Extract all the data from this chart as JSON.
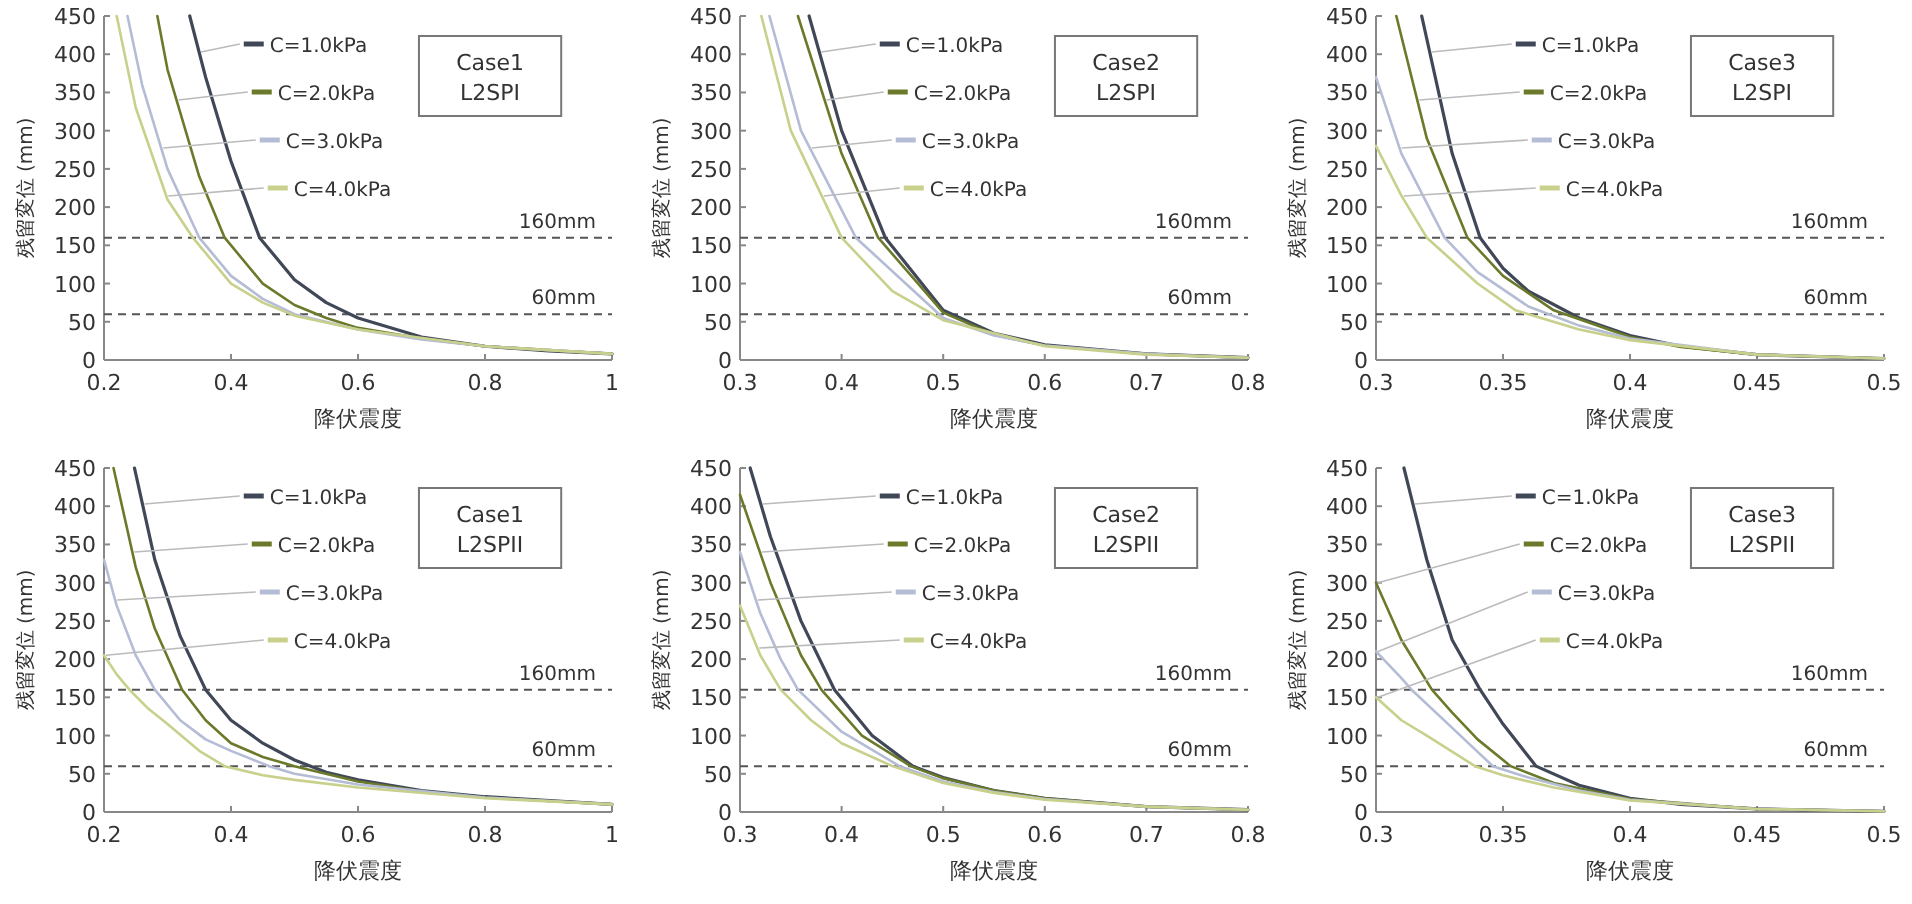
{
  "chart_data": [
    {
      "type": "line",
      "xlabel": "降伏震度",
      "ylabel": "残留変位 (mm)",
      "xlim": [
        0.2,
        1
      ],
      "xticks": [
        0.2,
        0.4,
        0.6,
        0.8,
        1
      ],
      "ylim": [
        0,
        450
      ],
      "yticks": [
        0,
        50,
        100,
        150,
        200,
        250,
        300,
        350,
        400,
        450
      ],
      "grid": false,
      "legend": "top",
      "marker": "none",
      "line_style": "solid",
      "annotations": [
        "Case1",
        "L2SPI"
      ],
      "ref_lines": [
        {
          "axis": "y",
          "value": 160,
          "label": "160mm",
          "color": "#555555",
          "line_style": "dashed"
        },
        {
          "axis": "y",
          "value": 60,
          "label": "60mm",
          "color": "#555555",
          "line_style": "dashed"
        }
      ],
      "series": [
        {
          "name": "C=1.0kPa",
          "color": "#404858",
          "x": [
            0.335,
            0.36,
            0.4,
            0.445,
            0.5,
            0.55,
            0.6,
            0.7,
            0.8,
            0.9,
            1.0
          ],
          "values": [
            450,
            370,
            260,
            160,
            105,
            75,
            55,
            30,
            18,
            12,
            8
          ]
        },
        {
          "name": "C=2.0kPa",
          "color": "#6b7a2a",
          "x": [
            0.284,
            0.3,
            0.35,
            0.39,
            0.45,
            0.5,
            0.55,
            0.6,
            0.7,
            0.8,
            1.0
          ],
          "values": [
            450,
            380,
            240,
            160,
            100,
            72,
            55,
            42,
            28,
            18,
            8
          ]
        },
        {
          "name": "C=3.0kPa",
          "color": "#b4bcd6",
          "x": [
            0.237,
            0.26,
            0.3,
            0.35,
            0.4,
            0.45,
            0.5,
            0.6,
            0.7,
            0.8,
            1.0
          ],
          "values": [
            450,
            360,
            250,
            160,
            110,
            80,
            60,
            40,
            27,
            18,
            8
          ]
        },
        {
          "name": "C=4.0kPa",
          "color": "#c8d08c",
          "x": [
            0.22,
            0.25,
            0.3,
            0.34,
            0.4,
            0.45,
            0.5,
            0.6,
            0.8,
            1.0
          ],
          "values": [
            450,
            330,
            210,
            160,
            100,
            75,
            58,
            40,
            18,
            8
          ]
        }
      ]
    },
    {
      "type": "line",
      "xlabel": "降伏震度",
      "ylabel": "残留変位 (mm)",
      "xlim": [
        0.3,
        0.8
      ],
      "xticks": [
        0.3,
        0.4,
        0.5,
        0.6,
        0.7,
        0.8
      ],
      "ylim": [
        0,
        450
      ],
      "yticks": [
        0,
        50,
        100,
        150,
        200,
        250,
        300,
        350,
        400,
        450
      ],
      "grid": false,
      "legend": "top",
      "marker": "none",
      "line_style": "solid",
      "annotations": [
        "Case2",
        "L2SPI"
      ],
      "ref_lines": [
        {
          "axis": "y",
          "value": 160,
          "label": "160mm",
          "color": "#555555",
          "line_style": "dashed"
        },
        {
          "axis": "y",
          "value": 60,
          "label": "60mm",
          "color": "#555555",
          "line_style": "dashed"
        }
      ],
      "series": [
        {
          "name": "C=1.0kPa",
          "color": "#404858",
          "x": [
            0.368,
            0.4,
            0.443,
            0.5,
            0.55,
            0.6,
            0.7,
            0.8
          ],
          "values": [
            450,
            300,
            160,
            65,
            35,
            20,
            8,
            3
          ]
        },
        {
          "name": "C=2.0kPa",
          "color": "#6b7a2a",
          "x": [
            0.357,
            0.4,
            0.436,
            0.5,
            0.55,
            0.6,
            0.7,
            0.8
          ],
          "values": [
            450,
            270,
            160,
            62,
            33,
            19,
            8,
            3
          ]
        },
        {
          "name": "C=3.0kPa",
          "color": "#b4bcd6",
          "x": [
            0.329,
            0.36,
            0.414,
            0.5,
            0.55,
            0.6,
            0.7,
            0.8
          ],
          "values": [
            450,
            300,
            160,
            55,
            32,
            19,
            8,
            3
          ]
        },
        {
          "name": "C=4.0kPa",
          "color": "#c8d08c",
          "x": [
            0.321,
            0.35,
            0.4,
            0.45,
            0.5,
            0.6,
            0.7,
            0.8
          ],
          "values": [
            450,
            300,
            160,
            90,
            52,
            18,
            7,
            3
          ]
        }
      ]
    },
    {
      "type": "line",
      "xlabel": "降伏震度",
      "ylabel": "残留変位 (mm)",
      "xlim": [
        0.3,
        0.5
      ],
      "xticks": [
        0.3,
        0.35,
        0.4,
        0.45,
        0.5
      ],
      "ylim": [
        0,
        450
      ],
      "yticks": [
        0,
        50,
        100,
        150,
        200,
        250,
        300,
        350,
        400,
        450
      ],
      "grid": false,
      "legend": "top",
      "marker": "none",
      "line_style": "solid",
      "annotations": [
        "Case3",
        "L2SPI"
      ],
      "ref_lines": [
        {
          "axis": "y",
          "value": 160,
          "label": "160mm",
          "color": "#555555",
          "line_style": "dashed"
        },
        {
          "axis": "y",
          "value": 60,
          "label": "60mm",
          "color": "#555555",
          "line_style": "dashed"
        }
      ],
      "series": [
        {
          "name": "C=1.0kPa",
          "color": "#404858",
          "x": [
            0.318,
            0.33,
            0.341,
            0.35,
            0.36,
            0.38,
            0.4,
            0.42,
            0.45,
            0.5
          ],
          "values": [
            450,
            270,
            160,
            120,
            90,
            55,
            32,
            18,
            7,
            2
          ]
        },
        {
          "name": "C=2.0kPa",
          "color": "#6b7a2a",
          "x": [
            0.308,
            0.32,
            0.336,
            0.35,
            0.37,
            0.4,
            0.42,
            0.45,
            0.5
          ],
          "values": [
            450,
            290,
            160,
            110,
            65,
            30,
            17,
            7,
            2
          ]
        },
        {
          "name": "C=3.0kPa",
          "color": "#b4bcd6",
          "x": [
            0.3,
            0.31,
            0.327,
            0.34,
            0.36,
            0.38,
            0.4,
            0.45,
            0.5
          ],
          "values": [
            370,
            270,
            160,
            115,
            70,
            45,
            28,
            7,
            2
          ]
        },
        {
          "name": "C=4.0kPa",
          "color": "#c8d08c",
          "x": [
            0.3,
            0.31,
            0.32,
            0.34,
            0.355,
            0.38,
            0.4,
            0.45,
            0.5
          ],
          "values": [
            280,
            215,
            160,
            100,
            65,
            40,
            26,
            7,
            2
          ]
        }
      ]
    },
    {
      "type": "line",
      "xlabel": "降伏震度",
      "ylabel": "残留変位 (mm)",
      "xlim": [
        0.2,
        1
      ],
      "xticks": [
        0.2,
        0.4,
        0.6,
        0.8,
        1
      ],
      "ylim": [
        0,
        450
      ],
      "yticks": [
        0,
        50,
        100,
        150,
        200,
        250,
        300,
        350,
        400,
        450
      ],
      "grid": false,
      "legend": "top",
      "marker": "none",
      "line_style": "solid",
      "annotations": [
        "Case1",
        "L2SPII"
      ],
      "ref_lines": [
        {
          "axis": "y",
          "value": 160,
          "label": "160mm",
          "color": "#555555",
          "line_style": "dashed"
        },
        {
          "axis": "y",
          "value": 60,
          "label": "60mm",
          "color": "#555555",
          "line_style": "dashed"
        }
      ],
      "series": [
        {
          "name": "C=1.0kPa",
          "color": "#404858",
          "x": [
            0.248,
            0.28,
            0.32,
            0.36,
            0.4,
            0.45,
            0.5,
            0.55,
            0.6,
            0.7,
            0.8,
            1.0
          ],
          "values": [
            450,
            330,
            230,
            160,
            120,
            90,
            68,
            52,
            42,
            28,
            20,
            10
          ]
        },
        {
          "name": "C=2.0kPa",
          "color": "#6b7a2a",
          "x": [
            0.215,
            0.25,
            0.28,
            0.323,
            0.36,
            0.4,
            0.45,
            0.5,
            0.6,
            0.7,
            0.8,
            1.0
          ],
          "values": [
            450,
            320,
            240,
            160,
            120,
            90,
            72,
            60,
            40,
            27,
            19,
            10
          ]
        },
        {
          "name": "C=3.0kPa",
          "color": "#b4bcd6",
          "x": [
            0.2,
            0.22,
            0.25,
            0.28,
            0.32,
            0.36,
            0.4,
            0.46,
            0.5,
            0.6,
            0.8,
            1.0
          ],
          "values": [
            330,
            270,
            205,
            160,
            120,
            95,
            80,
            60,
            50,
            36,
            19,
            10
          ]
        },
        {
          "name": "C=4.0kPa",
          "color": "#c8d08c",
          "x": [
            0.2,
            0.22,
            0.24,
            0.27,
            0.3,
            0.35,
            0.39,
            0.45,
            0.5,
            0.6,
            0.8,
            1.0
          ],
          "values": [
            205,
            180,
            160,
            135,
            115,
            80,
            60,
            48,
            42,
            32,
            18,
            10
          ]
        }
      ]
    },
    {
      "type": "line",
      "xlabel": "降伏震度",
      "ylabel": "残留変位 (mm)",
      "xlim": [
        0.3,
        0.8
      ],
      "xticks": [
        0.3,
        0.4,
        0.5,
        0.6,
        0.7,
        0.8
      ],
      "ylim": [
        0,
        450
      ],
      "yticks": [
        0,
        50,
        100,
        150,
        200,
        250,
        300,
        350,
        400,
        450
      ],
      "grid": false,
      "legend": "top",
      "marker": "none",
      "line_style": "solid",
      "annotations": [
        "Case2",
        "L2SPII"
      ],
      "ref_lines": [
        {
          "axis": "y",
          "value": 160,
          "label": "160mm",
          "color": "#555555",
          "line_style": "dashed"
        },
        {
          "axis": "y",
          "value": 60,
          "label": "60mm",
          "color": "#555555",
          "line_style": "dashed"
        }
      ],
      "series": [
        {
          "name": "C=1.0kPa",
          "color": "#404858",
          "x": [
            0.31,
            0.33,
            0.36,
            0.393,
            0.43,
            0.47,
            0.5,
            0.55,
            0.6,
            0.7,
            0.8
          ],
          "values": [
            450,
            360,
            250,
            160,
            100,
            60,
            45,
            28,
            18,
            7,
            3
          ]
        },
        {
          "name": "C=2.0kPa",
          "color": "#6b7a2a",
          "x": [
            0.3,
            0.33,
            0.36,
            0.38,
            0.42,
            0.468,
            0.5,
            0.55,
            0.6,
            0.7,
            0.8
          ],
          "values": [
            415,
            300,
            205,
            160,
            100,
            60,
            44,
            28,
            18,
            7,
            3
          ]
        },
        {
          "name": "C=3.0kPa",
          "color": "#b4bcd6",
          "x": [
            0.3,
            0.32,
            0.34,
            0.357,
            0.4,
            0.457,
            0.5,
            0.55,
            0.6,
            0.7,
            0.8
          ],
          "values": [
            340,
            260,
            200,
            160,
            105,
            60,
            40,
            26,
            17,
            7,
            3
          ]
        },
        {
          "name": "C=4.0kPa",
          "color": "#c8d08c",
          "x": [
            0.3,
            0.32,
            0.34,
            0.37,
            0.4,
            0.45,
            0.5,
            0.55,
            0.6,
            0.7,
            0.8
          ],
          "values": [
            270,
            205,
            160,
            120,
            90,
            60,
            38,
            25,
            16,
            7,
            3
          ]
        }
      ]
    },
    {
      "type": "line",
      "xlabel": "降伏震度",
      "ylabel": "残留変位 (mm)",
      "xlim": [
        0.3,
        0.5
      ],
      "xticks": [
        0.3,
        0.35,
        0.4,
        0.45,
        0.5
      ],
      "ylim": [
        0,
        450
      ],
      "yticks": [
        0,
        50,
        100,
        150,
        200,
        250,
        300,
        350,
        400,
        450
      ],
      "grid": false,
      "legend": "top",
      "marker": "none",
      "line_style": "solid",
      "annotations": [
        "Case3",
        "L2SPII"
      ],
      "ref_lines": [
        {
          "axis": "y",
          "value": 160,
          "label": "160mm",
          "color": "#555555",
          "line_style": "dashed"
        },
        {
          "axis": "y",
          "value": 60,
          "label": "60mm",
          "color": "#555555",
          "line_style": "dashed"
        }
      ],
      "series": [
        {
          "name": "C=1.0kPa",
          "color": "#404858",
          "x": [
            0.311,
            0.32,
            0.33,
            0.341,
            0.35,
            0.363,
            0.38,
            0.4,
            0.42,
            0.45,
            0.5
          ],
          "values": [
            450,
            330,
            225,
            160,
            115,
            60,
            35,
            18,
            10,
            4,
            1
          ]
        },
        {
          "name": "C=2.0kPa",
          "color": "#6b7a2a",
          "x": [
            0.3,
            0.31,
            0.322,
            0.33,
            0.34,
            0.353,
            0.37,
            0.4,
            0.45,
            0.5
          ],
          "values": [
            300,
            225,
            160,
            130,
            95,
            60,
            38,
            17,
            4,
            1
          ]
        },
        {
          "name": "C=3.0kPa",
          "color": "#b4bcd6",
          "x": [
            0.3,
            0.31,
            0.314,
            0.33,
            0.346,
            0.36,
            0.38,
            0.4,
            0.45,
            0.5
          ],
          "values": [
            210,
            175,
            160,
            110,
            60,
            45,
            28,
            16,
            4,
            1
          ]
        },
        {
          "name": "C=4.0kPa",
          "color": "#c8d08c",
          "x": [
            0.3,
            0.31,
            0.32,
            0.339,
            0.35,
            0.37,
            0.4,
            0.45,
            0.5
          ],
          "values": [
            150,
            120,
            100,
            60,
            48,
            32,
            15,
            4,
            1
          ]
        }
      ]
    }
  ]
}
